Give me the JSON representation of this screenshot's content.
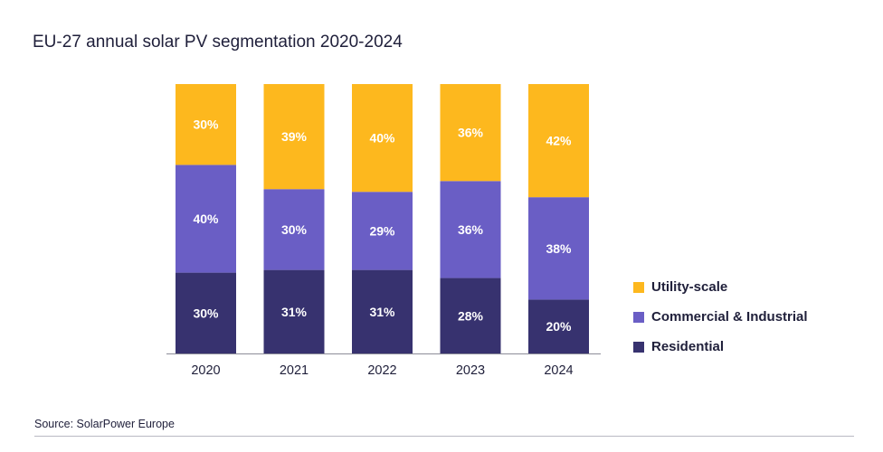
{
  "colors": {
    "utility": "#FDB81E",
    "commercial": "#6A5EC5",
    "residential": "#37326F",
    "axis": "#8C8C98",
    "label_text": "#FFFFFF"
  },
  "chart_data": {
    "type": "bar",
    "stacked": true,
    "percent": true,
    "title": "EU-27 annual solar PV segmentation 2020-2024",
    "categories": [
      "2020",
      "2021",
      "2022",
      "2023",
      "2024"
    ],
    "series": [
      {
        "name": "Residential",
        "color": "#37326F",
        "values": [
          30,
          31,
          31,
          28,
          20
        ]
      },
      {
        "name": "Commercial & Industrial",
        "color": "#6A5EC5",
        "values": [
          40,
          30,
          29,
          36,
          38
        ]
      },
      {
        "name": "Utility-scale",
        "color": "#FDB81E",
        "values": [
          30,
          39,
          40,
          36,
          42
        ]
      }
    ],
    "ylim": [
      0,
      100
    ],
    "legend_position": "right",
    "grid": false
  },
  "legend": [
    {
      "label": "Utility-scale",
      "color": "#FDB81E"
    },
    {
      "label": "Commercial & Industrial",
      "color": "#6A5EC5"
    },
    {
      "label": "Residential",
      "color": "#37326F"
    }
  ],
  "source": "Source: SolarPower Europe"
}
